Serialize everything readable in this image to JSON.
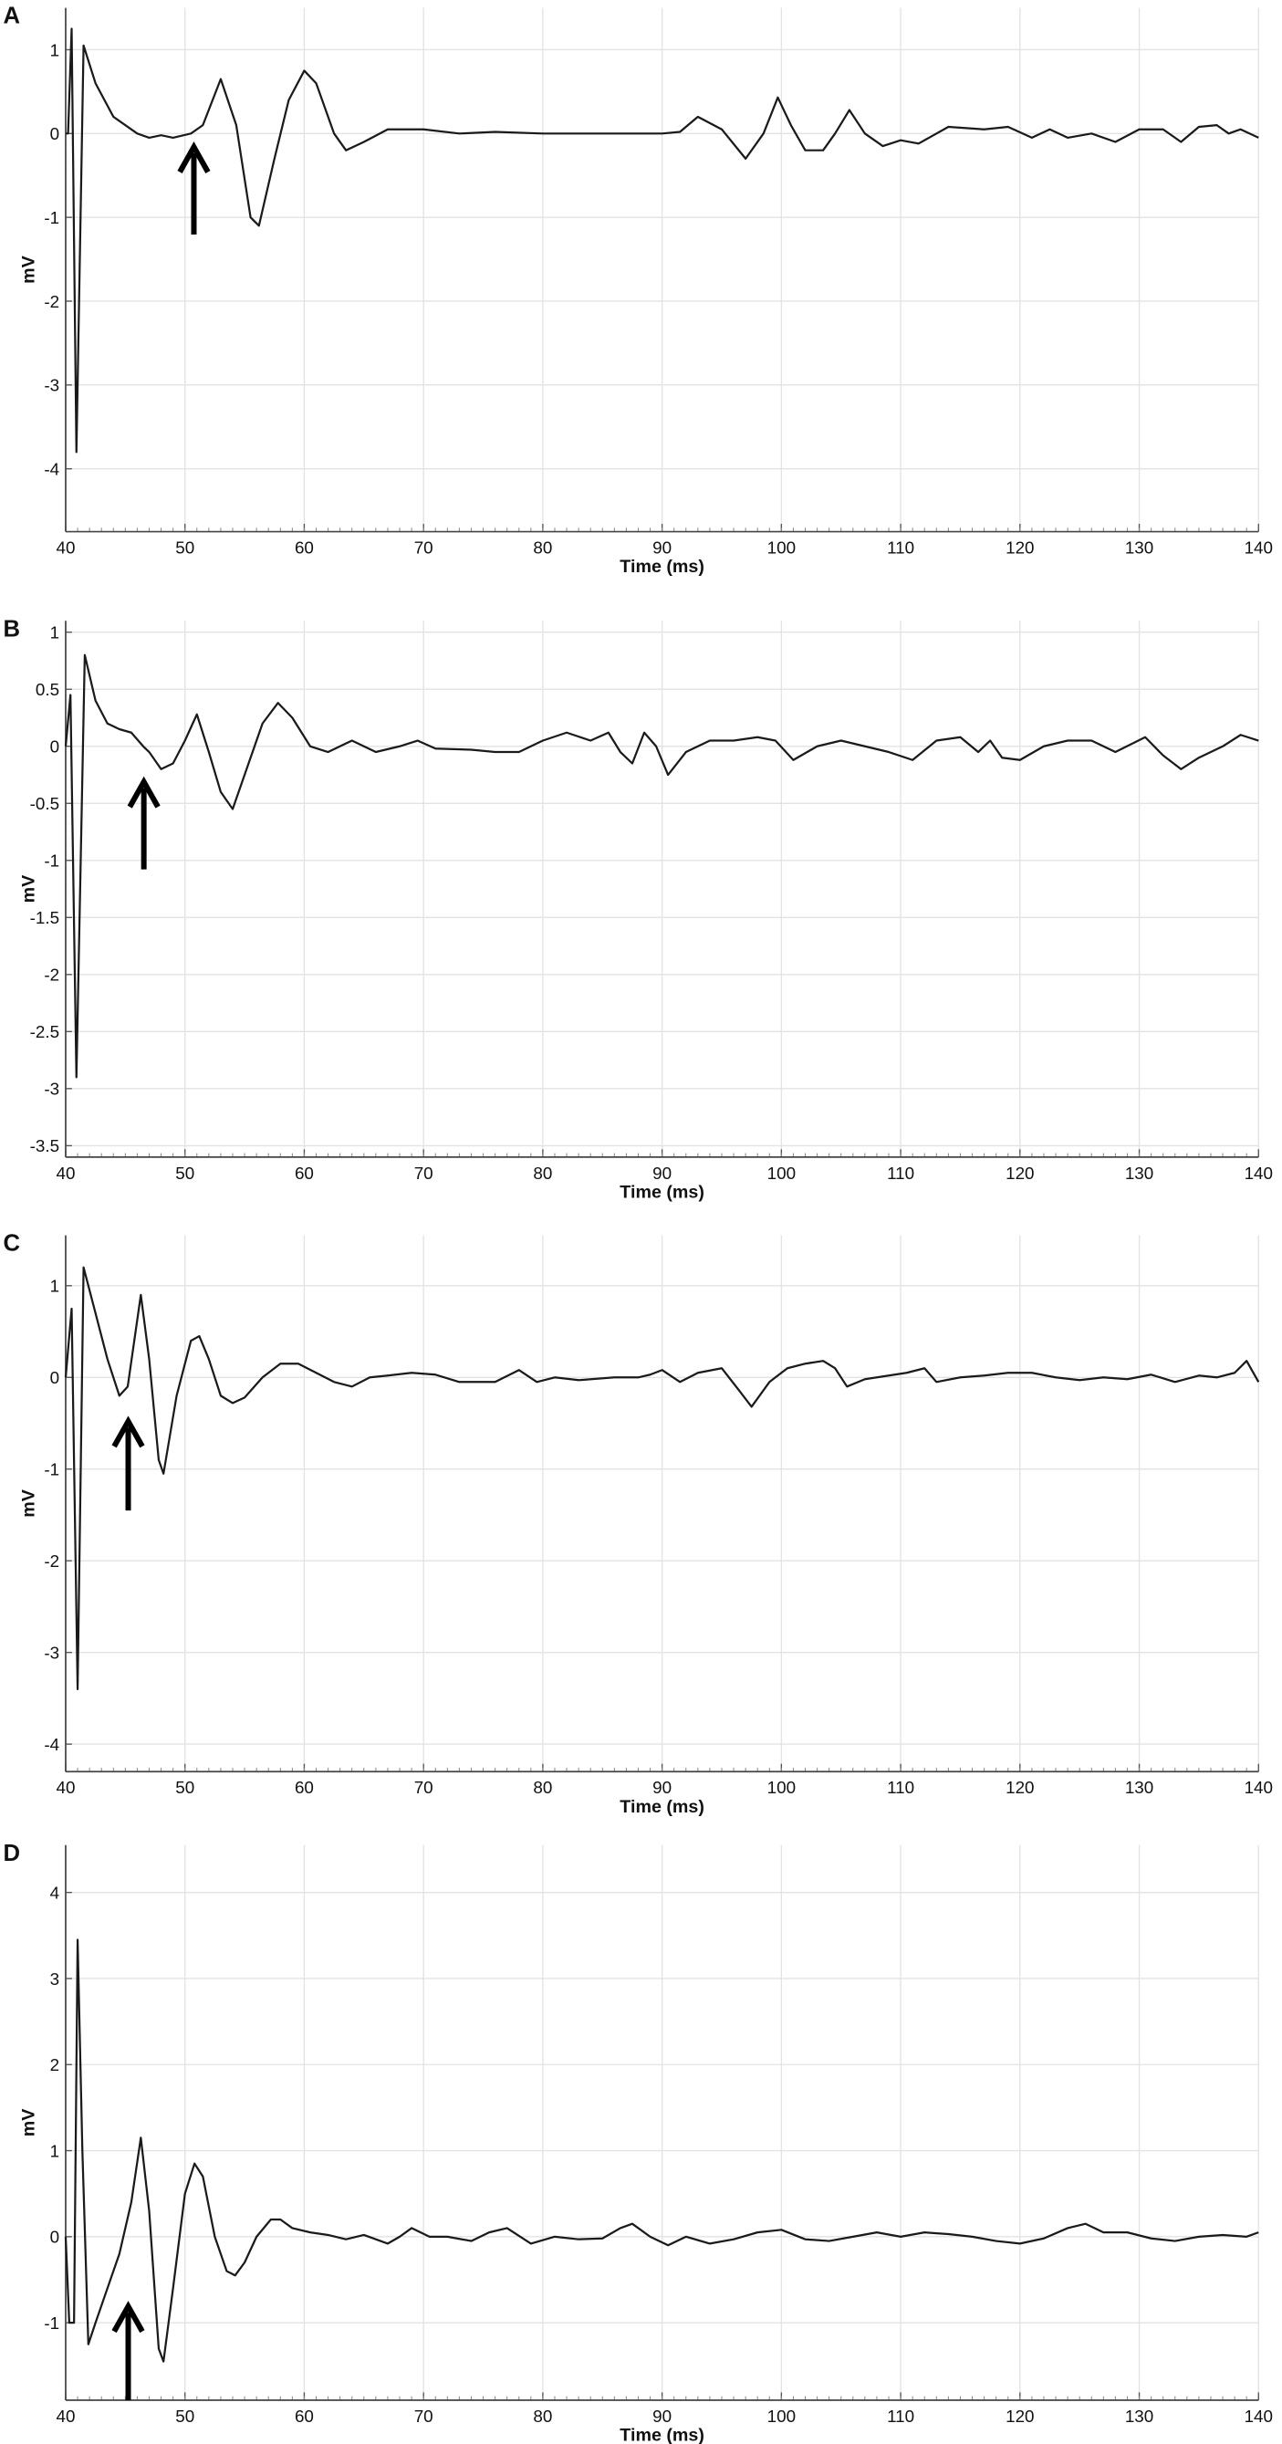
{
  "chart_data": [
    {
      "type": "line",
      "panel_label": "A",
      "x_label": "Time (ms)",
      "y_label": "mV",
      "color": "#1a1a1a",
      "grid": true,
      "xlim": [
        40,
        140
      ],
      "xticks": [
        40,
        50,
        60,
        70,
        80,
        90,
        100,
        110,
        120,
        130,
        140
      ],
      "ylim": [
        -4.75,
        1.5
      ],
      "yticks": [
        1,
        0,
        -1,
        -2,
        -3,
        -4
      ],
      "x": [
        40,
        40.2,
        40.5,
        40.9,
        41.5,
        42.5,
        44,
        46,
        47,
        48,
        49,
        50.5,
        51.5,
        53,
        54.3,
        55.5,
        56.2,
        57.5,
        58.7,
        60,
        61,
        62.5,
        63.5,
        65,
        67,
        70,
        73,
        76,
        80,
        85,
        90,
        91.5,
        93,
        95,
        97,
        98.5,
        99.7,
        100.8,
        102,
        103.5,
        104.5,
        105.7,
        107,
        108.5,
        110,
        111.5,
        114,
        117,
        119,
        121,
        122.5,
        124,
        126,
        128,
        130,
        132,
        133.5,
        135,
        136.5,
        137.5,
        138.5,
        140
      ],
      "values": [
        0,
        0,
        1.25,
        -3.8,
        1.05,
        0.6,
        0.2,
        0,
        -0.05,
        -0.02,
        -0.05,
        0,
        0.1,
        0.65,
        0.1,
        -1.0,
        -1.1,
        -0.3,
        0.4,
        0.75,
        0.6,
        0,
        -0.2,
        -0.1,
        0.05,
        0.05,
        0,
        0.02,
        0,
        0,
        0,
        0.02,
        0.2,
        0.05,
        -0.3,
        0,
        0.43,
        0.1,
        -0.2,
        -0.2,
        0,
        0.28,
        0,
        -0.15,
        -0.08,
        -0.12,
        0.08,
        0.05,
        0.08,
        -0.05,
        0.05,
        -0.05,
        0,
        -0.1,
        0.05,
        0.05,
        -0.1,
        0.08,
        0.1,
        0,
        0.05,
        -0.05
      ]
    },
    {
      "type": "line",
      "panel_label": "B",
      "x_label": "Time (ms)",
      "y_label": "mV",
      "color": "#1a1a1a",
      "grid": true,
      "xlim": [
        40,
        140
      ],
      "xticks": [
        40,
        50,
        60,
        70,
        80,
        90,
        100,
        110,
        120,
        130,
        140
      ],
      "ylim": [
        -3.6,
        1.1
      ],
      "yticks": [
        1,
        0.5,
        0,
        -0.5,
        -1,
        -1.5,
        -2,
        -2.5,
        -3,
        -3.5
      ],
      "x": [
        40,
        40.4,
        40.9,
        41.6,
        42.5,
        43.5,
        44.5,
        45.5,
        46.5,
        47,
        48,
        49,
        50,
        51,
        52,
        53,
        54,
        55,
        56.5,
        57.8,
        59,
        60.5,
        62,
        64,
        66,
        68,
        69.5,
        71,
        74,
        76,
        78,
        80,
        82,
        84,
        85.5,
        86.5,
        87.5,
        88.5,
        89.5,
        90.5,
        92,
        94,
        96,
        98,
        99.5,
        101,
        103,
        105,
        107,
        109,
        111,
        113,
        115,
        116.5,
        117.5,
        118.5,
        120,
        122,
        124,
        126,
        128,
        130.5,
        132,
        133.5,
        135,
        137,
        138.5,
        140
      ],
      "values": [
        0,
        0.45,
        -2.9,
        0.8,
        0.4,
        0.2,
        0.15,
        0.12,
        0,
        -0.05,
        -0.2,
        -0.15,
        0.05,
        0.28,
        -0.05,
        -0.4,
        -0.55,
        -0.25,
        0.2,
        0.38,
        0.25,
        0,
        -0.05,
        0.05,
        -0.05,
        0,
        0.05,
        -0.02,
        -0.03,
        -0.05,
        -0.05,
        0.05,
        0.12,
        0.05,
        0.12,
        -0.05,
        -0.15,
        0.12,
        0,
        -0.25,
        -0.05,
        0.05,
        0.05,
        0.08,
        0.05,
        -0.12,
        0,
        0.05,
        0,
        -0.05,
        -0.12,
        0.05,
        0.08,
        -0.05,
        0.05,
        -0.1,
        -0.12,
        0,
        0.05,
        0.05,
        -0.05,
        0.08,
        -0.08,
        -0.2,
        -0.1,
        0,
        0.1,
        0.05
      ]
    },
    {
      "type": "line",
      "panel_label": "C",
      "x_label": "Time (ms)",
      "y_label": "mV",
      "color": "#1a1a1a",
      "grid": true,
      "xlim": [
        40,
        140
      ],
      "xticks": [
        40,
        50,
        60,
        70,
        80,
        90,
        100,
        110,
        120,
        130,
        140
      ],
      "ylim": [
        -4.3,
        1.55
      ],
      "yticks": [
        1,
        0,
        -1,
        -2,
        -3,
        -4
      ],
      "x": [
        40,
        40.5,
        41,
        41.5,
        42.5,
        43.5,
        44.5,
        45.2,
        46.3,
        47,
        47.8,
        48.2,
        49.3,
        50.5,
        51.2,
        52,
        53,
        54,
        55,
        56.5,
        58,
        59.5,
        61,
        62.5,
        64,
        65.5,
        67,
        69,
        71,
        73,
        76,
        78,
        79.5,
        81,
        83,
        86,
        88,
        89,
        90,
        91.5,
        93,
        95,
        96.5,
        97.5,
        99,
        100.5,
        102,
        103.5,
        104.5,
        105.5,
        107,
        109,
        110.5,
        112,
        113,
        115,
        117,
        119,
        121,
        123,
        125,
        127,
        129,
        131,
        133,
        135,
        136.5,
        138,
        139,
        140
      ],
      "values": [
        0,
        0.75,
        -3.4,
        1.2,
        0.7,
        0.2,
        -0.2,
        -0.1,
        0.9,
        0.2,
        -0.9,
        -1.05,
        -0.2,
        0.4,
        0.45,
        0.2,
        -0.2,
        -0.28,
        -0.22,
        0,
        0.15,
        0.15,
        0.05,
        -0.05,
        -0.1,
        0,
        0.02,
        0.05,
        0.03,
        -0.05,
        -0.05,
        0.08,
        -0.05,
        0,
        -0.03,
        0,
        0,
        0.03,
        0.08,
        -0.05,
        0.05,
        0.1,
        -0.15,
        -0.32,
        -0.05,
        0.1,
        0.15,
        0.18,
        0.1,
        -0.1,
        -0.02,
        0.02,
        0.05,
        0.1,
        -0.05,
        0,
        0.02,
        0.05,
        0.05,
        0,
        -0.03,
        0,
        -0.02,
        0.03,
        -0.05,
        0.02,
        0,
        0.05,
        0.18,
        -0.05
      ]
    },
    {
      "type": "line",
      "panel_label": "D",
      "x_label": "Time (ms)",
      "y_label": "mV",
      "color": "#1a1a1a",
      "grid": true,
      "xlim": [
        40,
        140
      ],
      "xticks": [
        40,
        50,
        60,
        70,
        80,
        90,
        100,
        110,
        120,
        130,
        140
      ],
      "ylim": [
        -1.9,
        4.55
      ],
      "yticks": [
        4,
        3,
        2,
        1,
        0,
        -1
      ],
      "x": [
        40,
        40.3,
        40.7,
        41,
        41.4,
        41.9,
        42.5,
        43.5,
        44.5,
        45.5,
        46.3,
        47,
        47.8,
        48.2,
        49,
        50,
        50.8,
        51.5,
        52.5,
        53.5,
        54.2,
        55,
        56,
        57.2,
        58,
        59,
        60.5,
        62,
        63.5,
        65,
        67,
        68,
        69,
        70.5,
        72,
        74,
        75.5,
        77,
        79,
        81,
        83,
        85,
        86.5,
        87.5,
        89,
        90.5,
        92,
        94,
        96,
        98,
        100,
        102,
        104,
        106,
        108,
        110,
        112,
        114,
        116,
        118,
        120,
        122,
        124,
        125.5,
        127,
        129,
        131,
        133,
        135,
        137,
        139,
        140
      ],
      "values": [
        0,
        -1.0,
        -1.0,
        3.45,
        1.0,
        -1.25,
        -1.0,
        -0.6,
        -0.2,
        0.4,
        1.15,
        0.3,
        -1.3,
        -1.45,
        -0.6,
        0.5,
        0.85,
        0.7,
        0,
        -0.4,
        -0.45,
        -0.3,
        0,
        0.2,
        0.2,
        0.1,
        0.05,
        0.02,
        -0.03,
        0.02,
        -0.08,
        0,
        0.1,
        0,
        0,
        -0.05,
        0.05,
        0.1,
        -0.08,
        0,
        -0.03,
        -0.02,
        0.1,
        0.15,
        0,
        -0.1,
        0,
        -0.08,
        -0.03,
        0.05,
        0.08,
        -0.03,
        -0.05,
        0,
        0.05,
        0,
        0.05,
        0.03,
        0,
        -0.05,
        -0.08,
        -0.02,
        0.1,
        0.15,
        0.05,
        0.05,
        -0.02,
        -0.05,
        0,
        0.02,
        0,
        0.05
      ]
    }
  ]
}
